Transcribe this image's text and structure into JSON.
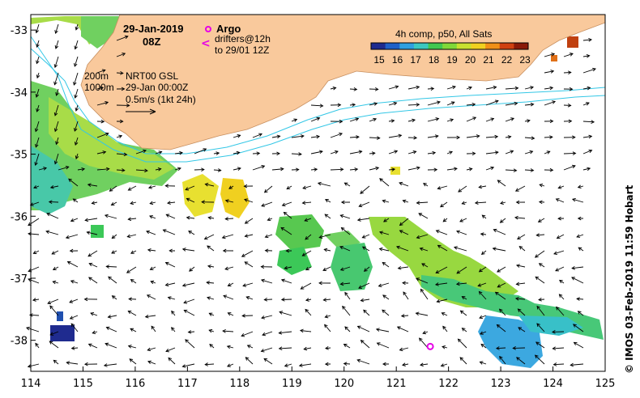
{
  "map": {
    "title_date": "29-Jan-2019",
    "title_time": "08Z",
    "legend_argo_label": "Argo",
    "legend_drifter_label_1": "drifters@12h",
    "legend_drifter_label_2": "to 29/01 12Z",
    "current_model": "NRT00 GSL",
    "current_time": "29-Jan 00:00Z",
    "scale_label": "0.5m/s (1kt 24h)",
    "isobath_200": "200m",
    "isobath_1000": "1000m",
    "colorbar_title": "4h comp, p50, All Sats",
    "colorbar_ticks": [
      "15",
      "16",
      "17",
      "18",
      "19",
      "20",
      "21",
      "22",
      "23"
    ],
    "credit": "© IMOS 03-Feb-2019 11:59 Hobart",
    "argo_float": {
      "lon": 121.65,
      "lat": -38.1
    }
  },
  "axes": {
    "x_ticks": [
      "114",
      "115",
      "116",
      "117",
      "118",
      "119",
      "120",
      "121",
      "122",
      "123",
      "124",
      "125"
    ],
    "y_ticks": [
      "-33",
      "-34",
      "-35",
      "-36",
      "-37",
      "-38"
    ]
  },
  "colors": {
    "land": "#f9c99c",
    "isobath": "#33c7e6",
    "argo": "#e600e6",
    "colorbar": [
      "#1f2b8f",
      "#2060c8",
      "#30a0e0",
      "#3cc8c0",
      "#40c850",
      "#80d838",
      "#c8e030",
      "#f0d020",
      "#f09018",
      "#d04010",
      "#8a1a08"
    ]
  }
}
